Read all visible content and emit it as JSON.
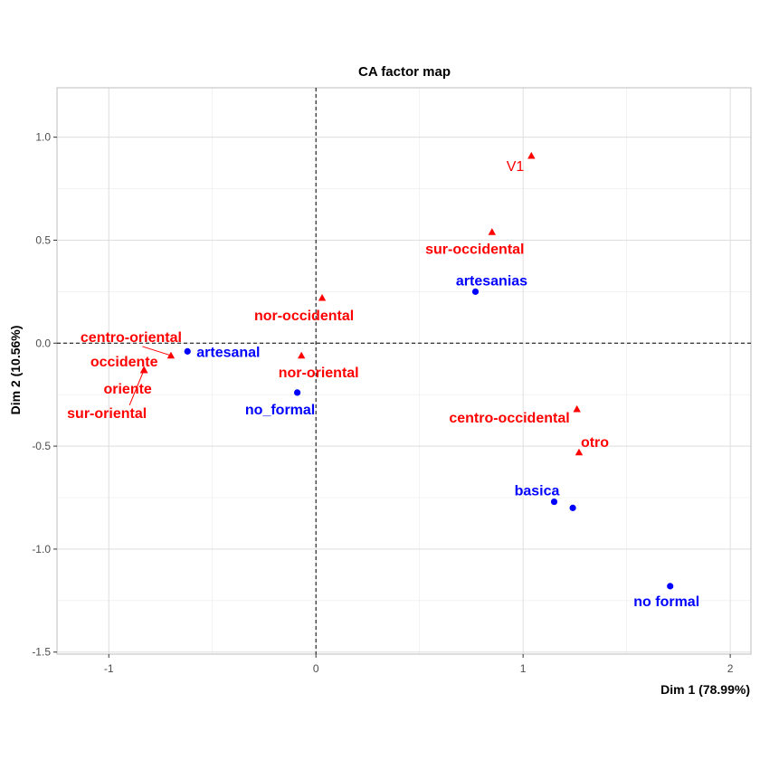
{
  "chart_data": {
    "type": "scatter",
    "title": "CA factor map",
    "xlabel": "Dim 1 (78.99%)",
    "ylabel": "Dim 2 (10.56%)",
    "xlim": [
      -1.25,
      2.1
    ],
    "ylim": [
      -1.51,
      1.24
    ],
    "x_ticks": [
      -1,
      0,
      1,
      2
    ],
    "y_ticks": [
      -1.5,
      -1.0,
      -0.5,
      0.0,
      0.5,
      1.0
    ],
    "x_tick_labels": [
      "-1",
      "0",
      "1",
      "2"
    ],
    "y_tick_labels": [
      "-1.5",
      "-1.0",
      "-0.5",
      "0.0",
      "0.5",
      "1.0"
    ],
    "grid": true,
    "reference_lines": {
      "x": 0,
      "y": 0,
      "style": "dashed"
    },
    "colors": {
      "columns": "#ff0000",
      "rows": "#0000ff"
    },
    "series": [
      {
        "marker": "triangle",
        "color": "#ff0000",
        "points": [
          {
            "label": "V1",
            "x": 1.04,
            "y": 0.91,
            "bold": false
          },
          {
            "label": "sur-occidental",
            "x": 0.85,
            "y": 0.54
          },
          {
            "label": "nor-occidental",
            "x": 0.03,
            "y": 0.22
          },
          {
            "label": "nor-oriental",
            "x": -0.07,
            "y": -0.06
          },
          {
            "label": "centro-oriental",
            "x": -0.7,
            "y": -0.06
          },
          {
            "label": "occidente",
            "x": -0.83,
            "y": -0.13
          },
          {
            "label": "oriente",
            "x": -0.83,
            "y": -0.13
          },
          {
            "label": "sur-oriental",
            "x": -0.83,
            "y": -0.13
          },
          {
            "label": "centro-occidental",
            "x": 1.26,
            "y": -0.32
          },
          {
            "label": "otro",
            "x": 1.27,
            "y": -0.53
          }
        ]
      },
      {
        "marker": "circle",
        "color": "#0000ff",
        "points": [
          {
            "label": "artesanias",
            "x": 0.77,
            "y": 0.25
          },
          {
            "label": "artesanal",
            "x": -0.62,
            "y": -0.04
          },
          {
            "label": "no_formal",
            "x": -0.09,
            "y": -0.24
          },
          {
            "label": "basica",
            "x": 1.15,
            "y": -0.77
          },
          {
            "label": "",
            "x": 1.24,
            "y": -0.8
          },
          {
            "label": "no formal",
            "x": 1.71,
            "y": -1.18
          }
        ]
      }
    ]
  }
}
